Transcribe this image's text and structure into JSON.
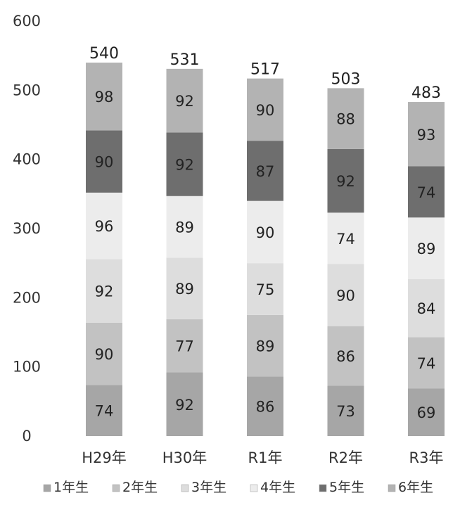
{
  "chart_data": {
    "type": "bar",
    "stacked": true,
    "categories": [
      "H29年",
      "H30年",
      "R1年",
      "R2年",
      "R3年"
    ],
    "series": [
      {
        "name": "1年生",
        "values": [
          74,
          92,
          86,
          73,
          69
        ],
        "color": "#a6a6a6"
      },
      {
        "name": "2年生",
        "values": [
          90,
          77,
          89,
          86,
          74
        ],
        "color": "#c2c2c2"
      },
      {
        "name": "3年生",
        "values": [
          92,
          89,
          75,
          90,
          84
        ],
        "color": "#dddddd"
      },
      {
        "name": "4年生",
        "values": [
          96,
          89,
          90,
          74,
          89
        ],
        "color": "#ececec"
      },
      {
        "name": "5年生",
        "values": [
          90,
          92,
          87,
          92,
          74
        ],
        "color": "#6e6e6e"
      },
      {
        "name": "6年生",
        "values": [
          98,
          92,
          90,
          88,
          93
        ],
        "color": "#b3b3b3"
      }
    ],
    "totals": [
      "540",
      "531",
      "517",
      "503",
      "483"
    ],
    "ylim": [
      0,
      600
    ],
    "yticks": [
      "0",
      "100",
      "200",
      "300",
      "400",
      "500",
      "600"
    ],
    "grid": false,
    "legend_position": "bottom"
  }
}
